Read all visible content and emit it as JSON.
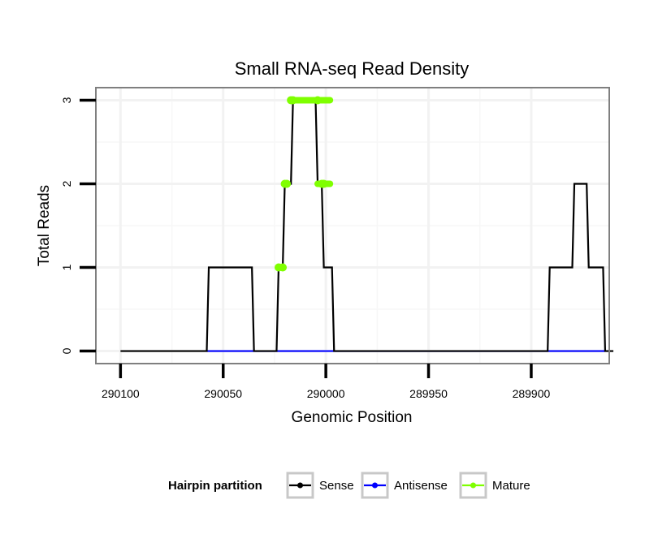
{
  "chart_data": {
    "type": "line",
    "title": "Small RNA-seq Read Density",
    "xlabel": "Genomic Position",
    "ylabel": "Total Reads",
    "x_reversed": true,
    "xlim": [
      290112,
      289862
    ],
    "ylim": [
      -0.15,
      3.15
    ],
    "xticks": [
      290100,
      290050,
      290000,
      289950,
      289900
    ],
    "xtick_labels": [
      "290100",
      "290050",
      "290000",
      "289950",
      "289900"
    ],
    "yticks": [
      0,
      1,
      2,
      3
    ],
    "ytick_labels": [
      "0",
      "1",
      "2",
      "3"
    ],
    "grid": true,
    "series": [
      {
        "name": "Sense",
        "color": "#000000",
        "x": [
          290100,
          290058,
          290057,
          290036,
          290035,
          290024,
          290023,
          290021,
          290020,
          290017,
          290016,
          290005,
          290004,
          290002,
          290001,
          289997,
          289996,
          289892,
          289891,
          289880,
          289879,
          289873,
          289872,
          289865,
          289864,
          289860
        ],
        "y": [
          0,
          0,
          1,
          1,
          0,
          0,
          1,
          1,
          2,
          2,
          3,
          3,
          2,
          2,
          1,
          1,
          0,
          0,
          1,
          1,
          2,
          2,
          1,
          1,
          0,
          0
        ]
      },
      {
        "name": "Antisense",
        "color": "#0000ff",
        "x": [
          290058,
          290035,
          290024,
          289996,
          289891,
          289864
        ],
        "y": [
          0,
          0,
          0,
          0,
          0,
          0
        ]
      },
      {
        "name": "Mature",
        "color": "#7fff00",
        "x": [
          290023,
          290021,
          290020,
          290019,
          290017,
          290016,
          290004,
          290002,
          290001
        ],
        "y": [
          1,
          1,
          2,
          2,
          3,
          3,
          3,
          2,
          2
        ]
      }
    ],
    "mature_segments": [
      {
        "x0": 290023,
        "x1": 290021,
        "y": 1
      },
      {
        "x0": 290020,
        "x1": 290019,
        "y": 2
      },
      {
        "x0": 290016,
        "x1": 289998,
        "y": 3
      },
      {
        "x0": 290004,
        "x1": 289998,
        "y": 2
      }
    ],
    "legend": {
      "title": "Hairpin partition",
      "placement": "bottom",
      "entries": [
        {
          "label": "Sense",
          "color": "#000000"
        },
        {
          "label": "Antisense",
          "color": "#0000ff"
        },
        {
          "label": "Mature",
          "color": "#7fff00"
        }
      ]
    }
  }
}
